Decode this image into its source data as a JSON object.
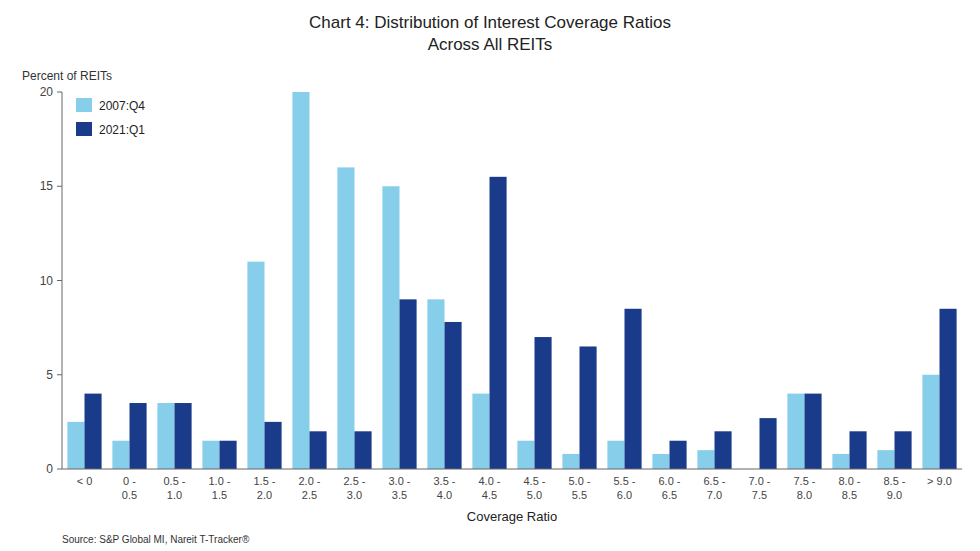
{
  "chart_data": {
    "type": "bar",
    "title": "Chart 4: Distribution of Interest Coverage Ratios",
    "subtitle": "Across All REITs",
    "x_label": "Coverage Ratio",
    "y_label": "Percent of REITs",
    "source": "Source: S&P Global MI, Nareit T-Tracker®",
    "categories": [
      "< 0",
      "0 -\n0.5",
      "0.5 -\n1.0",
      "1.0 -\n1.5",
      "1.5 -\n2.0",
      "2.0 -\n2.5",
      "2.5 -\n3.0",
      "3.0 -\n3.5",
      "3.5 -\n4.0",
      "4.0 -\n4.5",
      "4.5 -\n5.0",
      "5.0 -\n5.5",
      "5.5 -\n6.0",
      "6.0 -\n6.5",
      "6.5 -\n7.0",
      "7.0 -\n7.5",
      "7.5 -\n8.0",
      "8.0 -\n8.5",
      "8.5 -\n9.0",
      "> 9.0"
    ],
    "series": [
      {
        "name": "2007:Q4",
        "color": "#87CEEB",
        "values": [
          2.5,
          1.5,
          3.5,
          1.5,
          11.0,
          20.0,
          16.0,
          15.0,
          9.0,
          4.0,
          1.5,
          0.8,
          1.5,
          0.8,
          1.0,
          0.0,
          4.0,
          0.8,
          1.0,
          5.0
        ]
      },
      {
        "name": "2021:Q1",
        "color": "#1A3A8A",
        "values": [
          4.0,
          3.5,
          3.5,
          1.5,
          2.5,
          2.0,
          2.0,
          9.0,
          7.8,
          15.5,
          7.0,
          6.5,
          8.5,
          1.5,
          2.0,
          2.7,
          4.0,
          2.0,
          2.0,
          8.5
        ]
      }
    ],
    "ylim": [
      0,
      20
    ],
    "yticks": [
      0,
      5,
      10,
      15,
      20
    ],
    "grid": false,
    "legend": "upper left"
  }
}
